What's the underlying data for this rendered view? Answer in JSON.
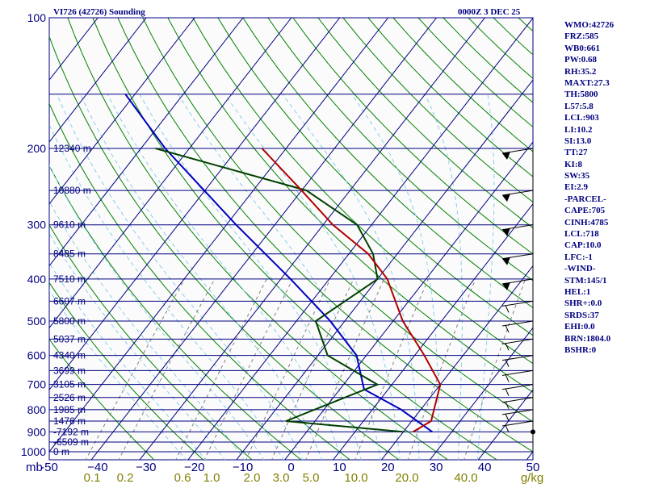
{
  "header": {
    "station": "VI726 (42726) Sounding",
    "time": "0000Z  3 DEC 25"
  },
  "indices": [
    "WMO:42726",
    "FRZ:585",
    "WB0:661",
    "PW:0.68",
    "RH:35.2",
    "MAXT:27.3",
    "TH:5800",
    "L57:5.8",
    "LCL:903",
    "LI:10.2",
    "SI:13.0",
    "TT:27",
    "KI:8",
    "SW:35",
    "EI:2.9",
    "-PARCEL-",
    "CAPE:705",
    "CINH:4785",
    "LCL:718",
    "CAP:10.0",
    "LFC:-1",
    "-WIND-",
    "STM:145/1",
    "HEL:1",
    "SHR+:0.0",
    "SRDS:37",
    "EHI:0.0",
    "BRN:1804.0",
    "BSHR:0"
  ],
  "colors": {
    "isobar": "#000080",
    "dry_adiabat": "#008000",
    "moist_adiabat": "#87ceeb",
    "mixing_ratio": "#808080",
    "temperature": "#b00000",
    "dewpoint": "#004000",
    "parcel": "#0000c0",
    "axis_text_temp": "#000080",
    "axis_text_mixing": "#808000"
  },
  "chart_data": {
    "type": "skew-t log-p sounding",
    "pressure_range_hpa": [
      1000,
      100
    ],
    "temperature_range_c": [
      -50,
      50
    ],
    "pressure_labels": [
      "100",
      "200",
      "300",
      "400",
      "500",
      "600",
      "700",
      "800",
      "900",
      "1000"
    ],
    "pressure_unit": "mb",
    "temperature_ticks": [
      "-50",
      "−40",
      "−30",
      "−20",
      "−10",
      "0",
      "10",
      "20",
      "30",
      "40",
      "50"
    ],
    "mixing_ratio_ticks": [
      "0.1",
      "0.2",
      "0.6",
      "1.0",
      "2.0",
      "3.0",
      "5.0",
      "10.0",
      "20.0",
      "40.0"
    ],
    "mixing_ratio_unit": "g/kg",
    "heights": [
      {
        "p": 200,
        "label": "12340 m"
      },
      {
        "p": 250,
        "label": "10880 m"
      },
      {
        "p": 300,
        "label": "9610 m"
      },
      {
        "p": 350,
        "label": "8485 m"
      },
      {
        "p": 400,
        "label": "7510 m"
      },
      {
        "p": 450,
        "label": "6607 m"
      },
      {
        "p": 500,
        "label": "5800 m"
      },
      {
        "p": 550,
        "label": "5037 m"
      },
      {
        "p": 600,
        "label": "4340 m"
      },
      {
        "p": 650,
        "label": "3699 m"
      },
      {
        "p": 700,
        "label": "3105 m"
      },
      {
        "p": 750,
        "label": "2526 m"
      },
      {
        "p": 800,
        "label": "1985 m"
      },
      {
        "p": 850,
        "label": "1476 m"
      },
      {
        "p": 900,
        "label": "-7192 m"
      },
      {
        "p": 950,
        "label": "-6509 m"
      },
      {
        "p": 1000,
        "label": "0 m"
      }
    ],
    "temperature": [
      {
        "p": 900,
        "t": 22
      },
      {
        "p": 850,
        "t": 24
      },
      {
        "p": 700,
        "t": 20
      },
      {
        "p": 600,
        "t": 12
      },
      {
        "p": 500,
        "t": 2
      },
      {
        "p": 400,
        "t": -8
      },
      {
        "p": 350,
        "t": -16
      },
      {
        "p": 300,
        "t": -28
      },
      {
        "p": 250,
        "t": -40
      },
      {
        "p": 200,
        "t": -55
      }
    ],
    "dewpoint": [
      {
        "p": 900,
        "t": 20
      },
      {
        "p": 850,
        "t": -6
      },
      {
        "p": 800,
        "t": -2
      },
      {
        "p": 700,
        "t": 7
      },
      {
        "p": 600,
        "t": -8
      },
      {
        "p": 500,
        "t": -16
      },
      {
        "p": 400,
        "t": -10
      },
      {
        "p": 350,
        "t": -15
      },
      {
        "p": 300,
        "t": -23
      },
      {
        "p": 250,
        "t": -39
      },
      {
        "p": 200,
        "t": -77
      }
    ],
    "parcel": [
      {
        "p": 900,
        "t": 26
      },
      {
        "p": 800,
        "t": 16
      },
      {
        "p": 718,
        "t": 5
      },
      {
        "p": 600,
        "t": -2
      },
      {
        "p": 500,
        "t": -13
      },
      {
        "p": 400,
        "t": -28
      },
      {
        "p": 300,
        "t": -48
      },
      {
        "p": 200,
        "t": -75
      },
      {
        "p": 150,
        "t": -92
      }
    ],
    "wind_barbs_hpa": [
      850,
      800,
      750,
      700,
      650,
      600,
      550,
      500,
      450,
      400,
      350,
      300,
      250,
      200
    ]
  }
}
